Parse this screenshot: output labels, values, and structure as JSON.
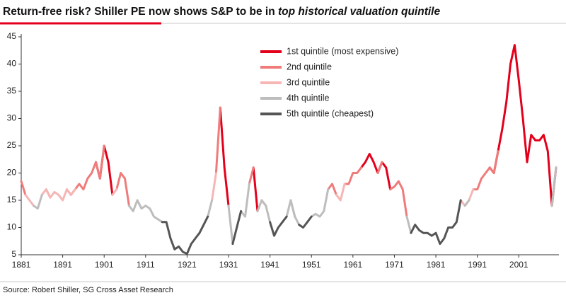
{
  "chart_data": {
    "type": "line",
    "title": "Return-free risk? Shiller PE now shows S&P to be in ",
    "title_emphasis": "top historical valuation quintile",
    "source": "Source: Robert Shiller, SG Cross Asset Research",
    "x": [
      1881,
      1882,
      1883,
      1884,
      1885,
      1886,
      1887,
      1888,
      1889,
      1890,
      1891,
      1892,
      1893,
      1894,
      1895,
      1896,
      1897,
      1898,
      1899,
      1900,
      1901,
      1902,
      1903,
      1904,
      1905,
      1906,
      1907,
      1908,
      1909,
      1910,
      1911,
      1912,
      1913,
      1914,
      1915,
      1916,
      1917,
      1918,
      1919,
      1920,
      1921,
      1922,
      1923,
      1924,
      1925,
      1926,
      1927,
      1928,
      1929,
      1930,
      1931,
      1932,
      1933,
      1934,
      1935,
      1936,
      1937,
      1938,
      1939,
      1940,
      1941,
      1942,
      1943,
      1944,
      1945,
      1946,
      1947,
      1948,
      1949,
      1950,
      1951,
      1952,
      1953,
      1954,
      1955,
      1956,
      1957,
      1958,
      1959,
      1960,
      1961,
      1962,
      1963,
      1964,
      1965,
      1966,
      1967,
      1968,
      1969,
      1970,
      1971,
      1972,
      1973,
      1974,
      1975,
      1976,
      1977,
      1978,
      1979,
      1980,
      1981,
      1982,
      1983,
      1984,
      1985,
      1986,
      1987,
      1988,
      1989,
      1990,
      1991,
      1992,
      1993,
      1994,
      1995,
      1996,
      1997,
      1998,
      1999,
      2000,
      2001,
      2002,
      2003,
      2004,
      2005,
      2006,
      2007,
      2008,
      2009,
      2010
    ],
    "series": [
      {
        "name": "1st quintile (most expensive)",
        "color": "#e3001b",
        "values": [
          null,
          null,
          null,
          null,
          null,
          null,
          null,
          null,
          null,
          null,
          null,
          null,
          null,
          null,
          null,
          null,
          null,
          null,
          22,
          19,
          25,
          22,
          16,
          null,
          null,
          null,
          null,
          null,
          null,
          null,
          null,
          null,
          null,
          null,
          null,
          null,
          null,
          null,
          null,
          null,
          null,
          null,
          null,
          null,
          null,
          null,
          null,
          null,
          32,
          21,
          14,
          null,
          null,
          null,
          null,
          null,
          21,
          13,
          null,
          null,
          null,
          null,
          null,
          null,
          null,
          null,
          null,
          null,
          null,
          null,
          null,
          null,
          null,
          null,
          null,
          null,
          null,
          null,
          null,
          null,
          null,
          null,
          21,
          22,
          23.5,
          22,
          20,
          22,
          21,
          17,
          null,
          null,
          null,
          null,
          null,
          null,
          null,
          null,
          null,
          null,
          null,
          null,
          null,
          null,
          null,
          null,
          null,
          null,
          null,
          null,
          null,
          null,
          null,
          21,
          20,
          24,
          28,
          33,
          40,
          43.5,
          37,
          30,
          22,
          27,
          26,
          26,
          27,
          24,
          14,
          21
        ]
      },
      {
        "name": "2nd quintile",
        "color": "#ef7b7b",
        "values": [
          18.5,
          16,
          null,
          null,
          null,
          null,
          17,
          15.5,
          null,
          null,
          null,
          17,
          16,
          17,
          18,
          17,
          19,
          20,
          22,
          19,
          25,
          null,
          null,
          17,
          20,
          19,
          14,
          null,
          null,
          null,
          null,
          null,
          null,
          null,
          null,
          null,
          null,
          null,
          null,
          null,
          null,
          null,
          null,
          null,
          null,
          null,
          null,
          20,
          32,
          null,
          null,
          null,
          null,
          null,
          null,
          18,
          21,
          null,
          null,
          null,
          null,
          null,
          null,
          null,
          null,
          null,
          null,
          null,
          null,
          null,
          null,
          null,
          null,
          null,
          17,
          18,
          16,
          null,
          18,
          18,
          20,
          20,
          21,
          null,
          null,
          null,
          20,
          22,
          null,
          17,
          17.5,
          18.5,
          17,
          12,
          null,
          null,
          null,
          null,
          null,
          null,
          null,
          null,
          null,
          null,
          null,
          null,
          null,
          null,
          null,
          17,
          17,
          19,
          20,
          21,
          20,
          24,
          null,
          null,
          null,
          null,
          null,
          null,
          null,
          null,
          null,
          null,
          null,
          null,
          null,
          null
        ]
      },
      {
        "name": "3rd quintile",
        "color": "#f6b6b6",
        "values": [
          null,
          16,
          15,
          14,
          null,
          16,
          17,
          15.5,
          16.5,
          16,
          15,
          17,
          16,
          17,
          null,
          null,
          null,
          null,
          null,
          null,
          null,
          null,
          16,
          17,
          null,
          null,
          null,
          null,
          15,
          13.5,
          null,
          null,
          null,
          null,
          null,
          null,
          null,
          null,
          null,
          null,
          null,
          null,
          null,
          null,
          null,
          null,
          15,
          20,
          null,
          null,
          null,
          null,
          null,
          null,
          null,
          null,
          null,
          null,
          15,
          14,
          null,
          null,
          null,
          null,
          null,
          15,
          12,
          null,
          null,
          null,
          null,
          null,
          null,
          null,
          null,
          null,
          16,
          15,
          18,
          null,
          null,
          null,
          null,
          null,
          null,
          null,
          null,
          null,
          null,
          null,
          null,
          null,
          null,
          null,
          null,
          null,
          null,
          null,
          null,
          null,
          null,
          null,
          null,
          null,
          null,
          null,
          15,
          14,
          15,
          17,
          null,
          null,
          null,
          null,
          null,
          null,
          null,
          null,
          null,
          null,
          null,
          null,
          null,
          null,
          null,
          null,
          null,
          null,
          null,
          null
        ]
      },
      {
        "name": "4th quintile",
        "color": "#bdbdbd",
        "values": [
          null,
          null,
          null,
          14,
          13.5,
          16,
          null,
          null,
          null,
          null,
          null,
          null,
          null,
          null,
          null,
          null,
          null,
          null,
          null,
          null,
          null,
          null,
          null,
          null,
          null,
          null,
          14,
          13,
          15,
          13.5,
          14,
          13.5,
          12,
          11.5,
          11,
          null,
          null,
          null,
          null,
          null,
          null,
          null,
          null,
          null,
          null,
          12,
          15,
          null,
          null,
          null,
          14,
          7,
          null,
          13,
          12,
          18,
          null,
          13,
          15,
          14,
          11,
          null,
          null,
          null,
          12,
          15,
          12,
          10.5,
          null,
          null,
          12,
          12.5,
          12,
          13,
          17,
          null,
          null,
          null,
          null,
          null,
          null,
          null,
          null,
          null,
          null,
          null,
          null,
          null,
          null,
          null,
          null,
          null,
          null,
          12,
          9,
          null,
          null,
          null,
          null,
          null,
          null,
          null,
          null,
          null,
          null,
          null,
          null,
          14,
          15,
          null,
          null,
          null,
          null,
          null,
          null,
          null,
          null,
          null,
          null,
          null,
          null,
          null,
          null,
          null,
          null,
          null,
          null,
          null,
          14,
          21
        ]
      },
      {
        "name": "5th quintile (cheapest)",
        "color": "#555555",
        "values": [
          null,
          null,
          null,
          null,
          null,
          null,
          null,
          null,
          null,
          null,
          null,
          null,
          null,
          null,
          null,
          null,
          null,
          null,
          null,
          null,
          null,
          null,
          null,
          null,
          null,
          null,
          null,
          null,
          null,
          null,
          null,
          null,
          null,
          null,
          11,
          11,
          8,
          6,
          6.5,
          5.5,
          5.2,
          7,
          8,
          9,
          10.5,
          12,
          null,
          null,
          null,
          null,
          null,
          7,
          10,
          13,
          null,
          null,
          null,
          null,
          null,
          null,
          11,
          8.5,
          10,
          11,
          12,
          null,
          null,
          10.5,
          10,
          11,
          12,
          null,
          null,
          null,
          null,
          null,
          null,
          null,
          null,
          null,
          null,
          null,
          null,
          null,
          null,
          null,
          null,
          null,
          null,
          null,
          null,
          null,
          null,
          null,
          9,
          10.5,
          9.5,
          9,
          9,
          8.5,
          9,
          7,
          8,
          10,
          10,
          11,
          15,
          null,
          null,
          null,
          null,
          null,
          null,
          null,
          null,
          null,
          null,
          null,
          null,
          null,
          null,
          null,
          null,
          null,
          null,
          null,
          null,
          null,
          null,
          null
        ]
      }
    ],
    "xlim": [
      1881,
      2010
    ],
    "xticks": [
      1881,
      1891,
      1901,
      1911,
      1921,
      1931,
      1941,
      1951,
      1961,
      1971,
      1981,
      1991,
      2001
    ],
    "ylim": [
      5,
      45
    ],
    "yticks": [
      5,
      10,
      15,
      20,
      25,
      30,
      35,
      40,
      45
    ]
  }
}
